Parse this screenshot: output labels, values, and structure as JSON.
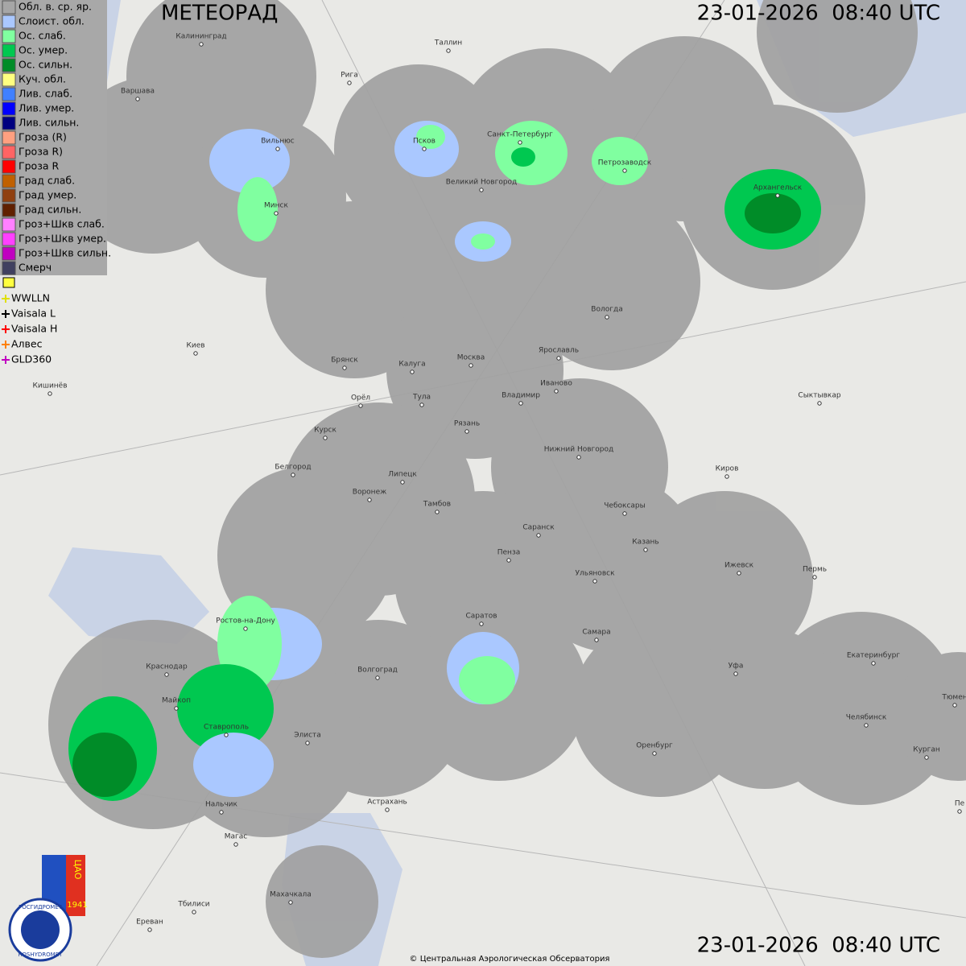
{
  "header": {
    "title": "МЕТЕОРАД",
    "time": "23-01-2026  08:40 UTC"
  },
  "footer": {
    "time": "23-01-2026  08:40 UTC",
    "copyright": "© Центральная Аэрологическая Обсерватория"
  },
  "legend": {
    "items": [
      {
        "label": "Обл. в. ср. яр.",
        "color": "#a6a6a6"
      },
      {
        "label": "Слоист. обл.",
        "color": "#aac8ff"
      },
      {
        "label": "Ос. слаб.",
        "color": "#80ffa0"
      },
      {
        "label": "Ос. умер.",
        "color": "#00c850"
      },
      {
        "label": "Ос. сильн.",
        "color": "#008c28"
      },
      {
        "label": "Куч. обл.",
        "color": "#ffff80"
      },
      {
        "label": "Лив. слаб.",
        "color": "#4080ff"
      },
      {
        "label": "Лив. умер.",
        "color": "#0000ff"
      },
      {
        "label": "Лив. сильн.",
        "color": "#000080"
      },
      {
        "label": "Гроза (R)",
        "color": "#ffa080"
      },
      {
        "label": "Гроза R)",
        "color": "#ff6464"
      },
      {
        "label": "Гроза R",
        "color": "#ff0000"
      },
      {
        "label": "Град слаб.",
        "color": "#c06000"
      },
      {
        "label": "Град умер.",
        "color": "#904010"
      },
      {
        "label": "Град сильн.",
        "color": "#602000"
      },
      {
        "label": "Гроз+Шкв слаб.",
        "color": "#ff80ff"
      },
      {
        "label": "Гроз+Шкв умер.",
        "color": "#ff40ff"
      },
      {
        "label": "Гроз+Шкв сильн.",
        "color": "#c000c0"
      },
      {
        "label": "Смерч",
        "color": "#404060"
      }
    ],
    "lightning": [
      {
        "label": "WWLLN",
        "color": "#e0e000"
      },
      {
        "label": "Vaisala L",
        "color": "#000000"
      },
      {
        "label": "Vaisala H",
        "color": "#ff0000"
      },
      {
        "label": "Алвес",
        "color": "#ff8000"
      },
      {
        "label": "GLD360",
        "color": "#c000c0"
      }
    ]
  },
  "logos": {
    "cao": "ЦАО",
    "year": "1941",
    "ru": "РОСГИДРОМЕТ",
    "en": "ROSHYDROMET"
  },
  "cities": [
    "Калининград",
    "Таллин",
    "Рига",
    "Варшава",
    "Вильнюс",
    "Псков",
    "Санкт-Петербург",
    "Петрозаводск",
    "Архангельск",
    "Великий Новгород",
    "Минск",
    "Вологда",
    "Киев",
    "Брянск",
    "Калуга",
    "Москва",
    "Ярославль",
    "Иваново",
    "Кишинёв",
    "Орёл",
    "Тула",
    "Владимир",
    "Сыктывкар",
    "Курск",
    "Рязань",
    "Нижний Новгород",
    "Белгород",
    "Киров",
    "Липецк",
    "Воронеж",
    "Тамбов",
    "Чебоксары",
    "Саранск",
    "Пенза",
    "Казань",
    "Ижевск",
    "Пермь",
    "Ульяновск",
    "Ростов-на-Дону",
    "Саратов",
    "Самара",
    "Краснодар",
    "Волгоград",
    "Екатеринбург",
    "Уфа",
    "Майкоп",
    "Ставрополь",
    "Элиста",
    "Челябинск",
    "Оренбург",
    "Курган",
    "Тюмен",
    "Нальчик",
    "Астрахань",
    "Магас",
    "Тбилиси",
    "Махачкала",
    "Ереван",
    "Пе"
  ]
}
